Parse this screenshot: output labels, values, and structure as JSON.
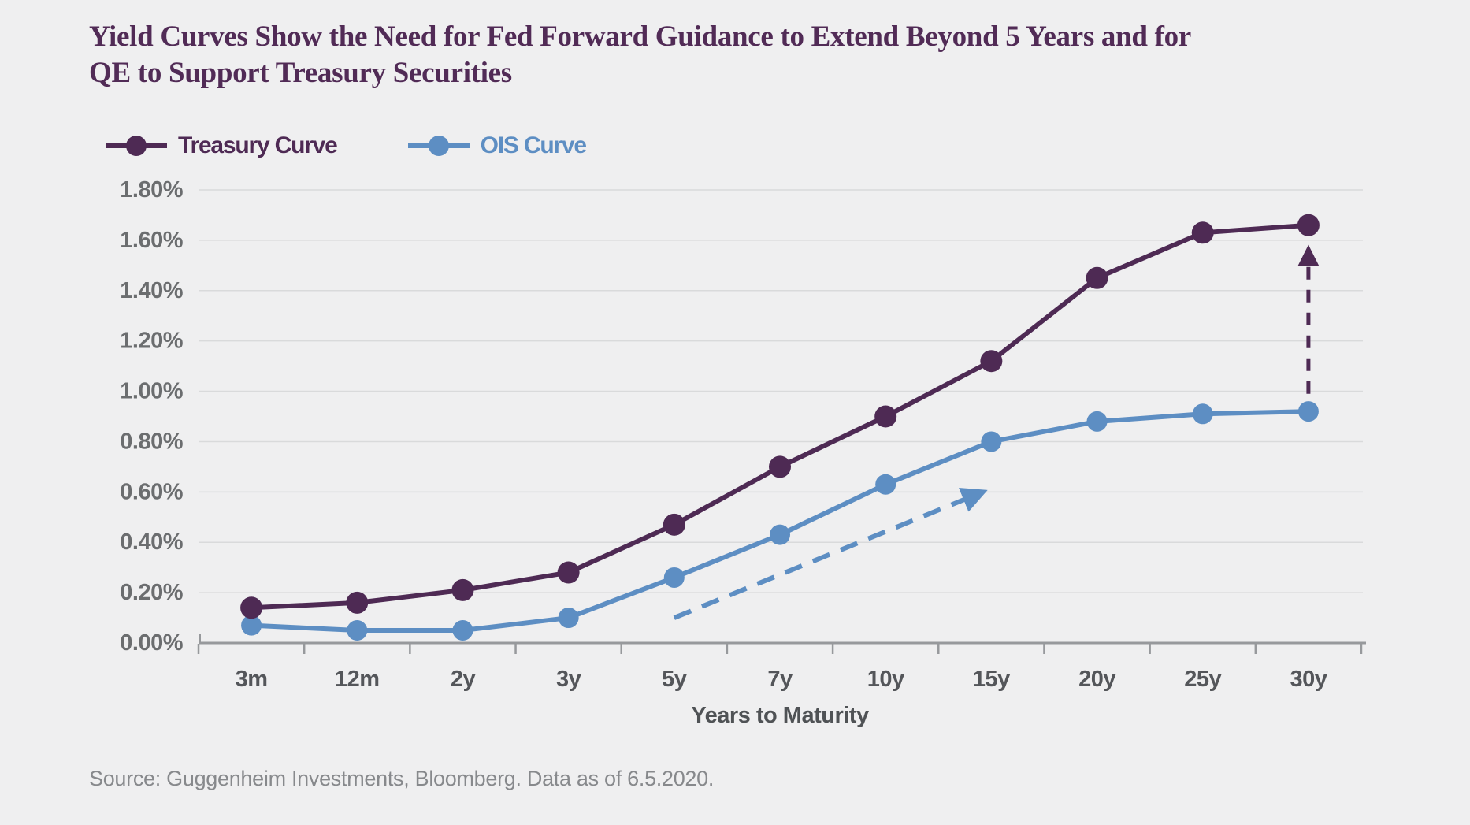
{
  "title": {
    "lines": [
      "Yield Curves Show the Need for Fed Forward Guidance to Extend Beyond 5 Years and for",
      "QE to Support Treasury Securities"
    ]
  },
  "legend": [
    {
      "label": "Treasury Curve",
      "color": "#4e2a54"
    },
    {
      "label": "OIS Curve",
      "color": "#5d8ec3"
    }
  ],
  "source_note": "Source: Guggenheim Investments, Bloomberg. Data as of 6.5.2020.",
  "chart_data": {
    "type": "line",
    "title": "Yield Curves Show the Need for Fed Forward Guidance to Extend Beyond 5 Years and for QE to Support Treasury Securities",
    "categories": [
      "3m",
      "12m",
      "2y",
      "3y",
      "5y",
      "7y",
      "10y",
      "15y",
      "20y",
      "25y",
      "30y"
    ],
    "series": [
      {
        "name": "Treasury Curve",
        "color": "#4e2a54",
        "values": [
          0.14,
          0.16,
          0.21,
          0.28,
          0.47,
          0.7,
          0.9,
          1.12,
          1.45,
          1.63,
          1.66
        ]
      },
      {
        "name": "OIS Curve",
        "color": "#5d8ec3",
        "values": [
          0.07,
          0.05,
          0.05,
          0.1,
          0.26,
          0.43,
          0.63,
          0.8,
          0.88,
          0.91,
          0.92
        ]
      }
    ],
    "values_unit": "percent",
    "xlabel": "Years to Maturity",
    "ylabel": "",
    "y_ticks": [
      "1.80%",
      "1.60%",
      "1.40%",
      "1.20%",
      "1.00%",
      "0.80%",
      "0.60%",
      "0.40%",
      "0.20%",
      "0.00%"
    ],
    "ylim": [
      0,
      1.8
    ],
    "grid": true,
    "legend_position": "top-left",
    "annotations": [
      {
        "name": "ois-steepening-dashed-arrow",
        "type": "dashed-arrow",
        "color": "#5d8ec3",
        "width": 6,
        "dash": "23 15",
        "from": {
          "cat": 4.0,
          "value": 0.1
        },
        "to": {
          "cat": 6.92,
          "value": 0.6
        }
      },
      {
        "name": "treasury-ois-gap-dashed-arrow",
        "type": "dashed-arrow",
        "color": "#4e2a54",
        "width": 5,
        "dash": "16 13",
        "from": {
          "cat": 10,
          "value": 0.99
        },
        "to": {
          "cat": 10,
          "value": 1.565
        }
      }
    ]
  }
}
